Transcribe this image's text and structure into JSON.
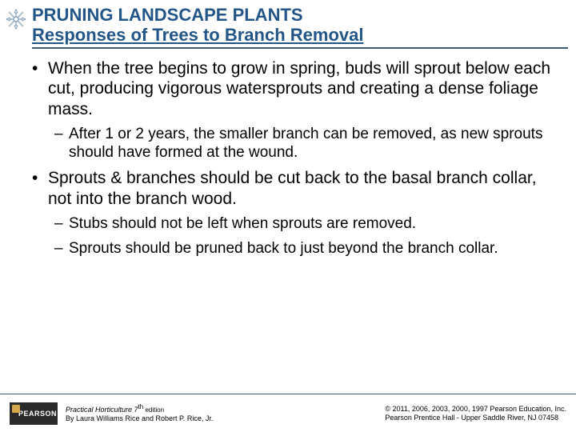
{
  "colors": {
    "title": "#225588",
    "rule": "#3a5a7a",
    "asterisk_outline": "#6a8aa8",
    "asterisk_lines": "#b0c4d6",
    "text": "#000000"
  },
  "header": {
    "title": "PRUNING LANDSCAPE PLANTS",
    "subtitle": "Responses of Trees to Branch Removal"
  },
  "bullets": [
    {
      "level": 1,
      "text": "When the tree begins to grow in spring, buds will sprout below each cut, producing vigorous watersprouts and creating a dense foliage mass."
    },
    {
      "level": 2,
      "text": "After 1 or 2 years, the smaller branch can be removed, as new sprouts should have formed at the wound."
    },
    {
      "level": 1,
      "text": "Sprouts & branches should be cut back to the basal branch collar, not into the branch wood."
    },
    {
      "level": 2,
      "text": "Stubs should not be left when sprouts are removed."
    },
    {
      "level": 2,
      "text": "Sprouts should be pruned back to just beyond the branch collar."
    }
  ],
  "footer": {
    "logo_text": "PEARSON",
    "book_title": "Practical Horticulture 7",
    "edition_suffix": "th",
    "edition_word": " edition",
    "byline": "By Laura Williams Rice and Robert P. Rice, Jr.",
    "copyright_line1": "© 2011, 2006, 2003, 2000, 1997 Pearson Education, Inc.",
    "copyright_line2": "Pearson Prentice Hall - Upper Saddle River, NJ 07458"
  }
}
